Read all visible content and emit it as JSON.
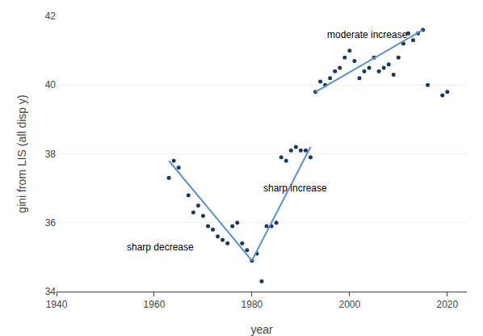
{
  "chart_data": {
    "type": "scatter",
    "xlabel": "year",
    "ylabel": "gini from LIS (all disp y)",
    "xlim": [
      1940,
      2024
    ],
    "ylim": [
      34,
      42
    ],
    "xticks": [
      1940,
      1960,
      1980,
      2000,
      2020
    ],
    "yticks": [
      34,
      36,
      38,
      40,
      42
    ],
    "grid": "y",
    "series": [
      {
        "type": "scatter",
        "marker": "circle",
        "color": "#1a3a5c",
        "x": [
          1963,
          1964,
          1965,
          1967,
          1968,
          1969,
          1970,
          1971,
          1972,
          1973,
          1974,
          1975,
          1976,
          1977,
          1978,
          1979,
          1980,
          1981,
          1982,
          1983,
          1984,
          1985,
          1986,
          1987,
          1988,
          1989,
          1990,
          1991,
          1992,
          1993,
          1994,
          1995,
          1996,
          1997,
          1998,
          1999,
          2000,
          2001,
          2002,
          2003,
          2004,
          2005,
          2006,
          2007,
          2008,
          2009,
          2010,
          2011,
          2012,
          2013,
          2014,
          2015,
          2016,
          2019,
          2020
        ],
        "values": [
          37.3,
          37.8,
          37.6,
          36.8,
          36.3,
          36.5,
          36.2,
          35.9,
          35.8,
          35.6,
          35.5,
          35.4,
          35.9,
          36.0,
          35.4,
          35.2,
          34.9,
          35.1,
          34.3,
          35.9,
          35.9,
          36.0,
          37.9,
          37.8,
          38.1,
          38.2,
          38.1,
          38.1,
          37.9,
          39.8,
          40.1,
          40.0,
          40.2,
          40.4,
          40.5,
          40.8,
          41.0,
          40.7,
          40.2,
          40.4,
          40.5,
          40.8,
          40.4,
          40.5,
          40.6,
          40.3,
          40.8,
          41.2,
          41.5,
          41.3,
          41.5,
          41.6,
          40.0,
          39.7,
          39.8
        ]
      },
      {
        "type": "line",
        "line_style": "solid",
        "color": "#5b8fc9",
        "x": [
          1963,
          1980
        ],
        "values": [
          37.8,
          34.9
        ]
      },
      {
        "type": "line",
        "line_style": "solid",
        "color": "#5b8fc9",
        "x": [
          1980,
          1992
        ],
        "values": [
          34.9,
          38.2
        ]
      },
      {
        "type": "line",
        "line_style": "solid",
        "color": "#5b8fc9",
        "x": [
          1993,
          2015
        ],
        "values": [
          39.8,
          41.6
        ]
      }
    ],
    "annotations": [
      {
        "text": "sharp decrease",
        "x": 1954,
        "y": 35.3
      },
      {
        "text": "sharp increase",
        "x": 1982,
        "y": 37.0
      },
      {
        "text": "moderate increase",
        "x": 1995,
        "y": 41.45
      }
    ]
  }
}
